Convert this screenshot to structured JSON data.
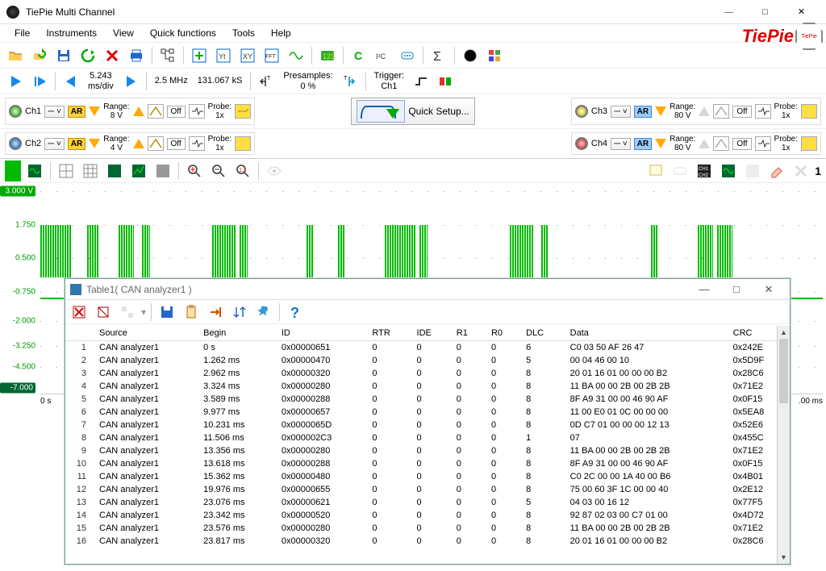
{
  "window": {
    "title": "TiePie Multi Channel"
  },
  "logo": {
    "text": "TiePie",
    "badge": "TiePie",
    "color": "#d00000"
  },
  "menu": [
    "File",
    "Instruments",
    "View",
    "Quick functions",
    "Tools",
    "Help"
  ],
  "toolbar2": {
    "timebase_value": "5.243",
    "timebase_unit": "ms/div",
    "sample_rate": "2.5 MHz",
    "record_len": "131.067 kS",
    "presamples_label": "Presamples:",
    "presamples_value": "0 %",
    "trigger_label": "Trigger:",
    "trigger_source": "Ch1"
  },
  "quick_setup_label": "Quick Setup...",
  "channels": [
    {
      "name": "Ch1",
      "led": "#9ee040",
      "range_label": "Range:",
      "range": "8 V",
      "off": "Off",
      "probe_label": "Probe:",
      "probe": "1x",
      "ar_style": "yellow"
    },
    {
      "name": "Ch2",
      "led": "#2aa0e0",
      "range_label": "Range:",
      "range": "4 V",
      "off": "Off",
      "probe_label": "Probe:",
      "probe": "1x",
      "ar_style": "yellow"
    },
    {
      "name": "Ch3",
      "led": "#f0d030",
      "range_label": "Range:",
      "range": "80 V",
      "off": "Off",
      "probe_label": "Probe:",
      "probe": "1x",
      "ar_style": "blue"
    },
    {
      "name": "Ch4",
      "led": "#e04040",
      "range_label": "Range:",
      "range": "80 V",
      "off": "Off",
      "probe_label": "Probe:",
      "probe": "1x",
      "ar_style": "blue"
    }
  ],
  "yaxis": {
    "ticks": [
      {
        "v": "3.000",
        "unit": "V",
        "hl": true,
        "pos": 4
      },
      {
        "v": "1.750",
        "pos": 20
      },
      {
        "v": "0.500",
        "pos": 36
      },
      {
        "v": "-0.750",
        "pos": 52
      },
      {
        "v": "-2.000",
        "pos": 66
      },
      {
        "v": "-3.250",
        "pos": 78
      },
      {
        "v": "-4.500",
        "pos": 88
      },
      {
        "v": "-7.000",
        "hl2": true,
        "pos": 98
      }
    ]
  },
  "xaxis": {
    "start": "0 s",
    "end": ".00 ms"
  },
  "signal_bursts": [
    {
      "l": 0,
      "w": 4
    },
    {
      "l": 6,
      "w": 1.5
    },
    {
      "l": 10,
      "w": 2
    },
    {
      "l": 13,
      "w": 1
    },
    {
      "l": 22,
      "w": 3
    },
    {
      "l": 25.5,
      "w": 1
    },
    {
      "l": 34,
      "w": 1
    },
    {
      "l": 38,
      "w": 1
    },
    {
      "l": 44,
      "w": 4
    },
    {
      "l": 48.5,
      "w": 1
    },
    {
      "l": 60,
      "w": 3
    },
    {
      "l": 64,
      "w": 1
    },
    {
      "l": 78,
      "w": 1
    },
    {
      "l": 84,
      "w": 2
    },
    {
      "l": 86.5,
      "w": 2
    }
  ],
  "wave_colors": {
    "signal": "#00b000",
    "axis_text": "#00a000"
  },
  "wave_toolbar_right_count": "1",
  "table_window": {
    "title": "Table1( CAN analyzer1 )",
    "columns": [
      "",
      "Source",
      "Begin",
      "ID",
      "RTR",
      "IDE",
      "R1",
      "R0",
      "DLC",
      "Data",
      "CRC"
    ],
    "rows": [
      [
        "1",
        "CAN analyzer1",
        "0 s",
        "0x00000651",
        "0",
        "0",
        "0",
        "0",
        "6",
        "C0 03 50 AF 26 47",
        "0x242E"
      ],
      [
        "2",
        "CAN analyzer1",
        "1.262 ms",
        "0x00000470",
        "0",
        "0",
        "0",
        "0",
        "5",
        "00 04 46 00 10",
        "0x5D9F"
      ],
      [
        "3",
        "CAN analyzer1",
        "2.962 ms",
        "0x00000320",
        "0",
        "0",
        "0",
        "0",
        "8",
        "20 01 16 01 00 00 00 B2",
        "0x28C6"
      ],
      [
        "4",
        "CAN analyzer1",
        "3.324 ms",
        "0x00000280",
        "0",
        "0",
        "0",
        "0",
        "8",
        "11 BA 00 00 2B 00 2B 2B",
        "0x71E2"
      ],
      [
        "5",
        "CAN analyzer1",
        "3.589 ms",
        "0x00000288",
        "0",
        "0",
        "0",
        "0",
        "8",
        "8F A9 31 00 00 46 90 AF",
        "0x0F15"
      ],
      [
        "6",
        "CAN analyzer1",
        "9.977 ms",
        "0x00000657",
        "0",
        "0",
        "0",
        "0",
        "8",
        "11 00 E0 01 0C 00 00 00",
        "0x5EA8"
      ],
      [
        "7",
        "CAN analyzer1",
        "10.231 ms",
        "0x0000065D",
        "0",
        "0",
        "0",
        "0",
        "8",
        "0D C7 01 00 00 00 12 13",
        "0x52E6"
      ],
      [
        "8",
        "CAN analyzer1",
        "11.506 ms",
        "0x000002C3",
        "0",
        "0",
        "0",
        "0",
        "1",
        "07",
        "0x455C"
      ],
      [
        "9",
        "CAN analyzer1",
        "13.356 ms",
        "0x00000280",
        "0",
        "0",
        "0",
        "0",
        "8",
        "11 BA 00 00 2B 00 2B 2B",
        "0x71E2"
      ],
      [
        "10",
        "CAN analyzer1",
        "13.618 ms",
        "0x00000288",
        "0",
        "0",
        "0",
        "0",
        "8",
        "8F A9 31 00 00 46 90 AF",
        "0x0F15"
      ],
      [
        "11",
        "CAN analyzer1",
        "15.362 ms",
        "0x00000480",
        "0",
        "0",
        "0",
        "0",
        "8",
        "C0 2C 00 00 1A 40 00 B6",
        "0x4B01"
      ],
      [
        "12",
        "CAN analyzer1",
        "19.976 ms",
        "0x00000655",
        "0",
        "0",
        "0",
        "0",
        "8",
        "75 00 60 3F 1C 00 00 40",
        "0x2E12"
      ],
      [
        "13",
        "CAN analyzer1",
        "23.076 ms",
        "0x00000621",
        "0",
        "0",
        "0",
        "0",
        "5",
        "04 03 00 16 12",
        "0x77F5"
      ],
      [
        "14",
        "CAN analyzer1",
        "23.342 ms",
        "0x00000520",
        "0",
        "0",
        "0",
        "0",
        "8",
        "92 87 02 03 00 C7 01 00",
        "0x4D72"
      ],
      [
        "15",
        "CAN analyzer1",
        "23.576 ms",
        "0x00000280",
        "0",
        "0",
        "0",
        "0",
        "8",
        "11 BA 00 00 2B 00 2B 2B",
        "0x71E2"
      ],
      [
        "16",
        "CAN analyzer1",
        "23.817 ms",
        "0x00000320",
        "0",
        "0",
        "0",
        "0",
        "8",
        "20 01 16 01 00 00 00 B2",
        "0x28C6"
      ]
    ]
  }
}
